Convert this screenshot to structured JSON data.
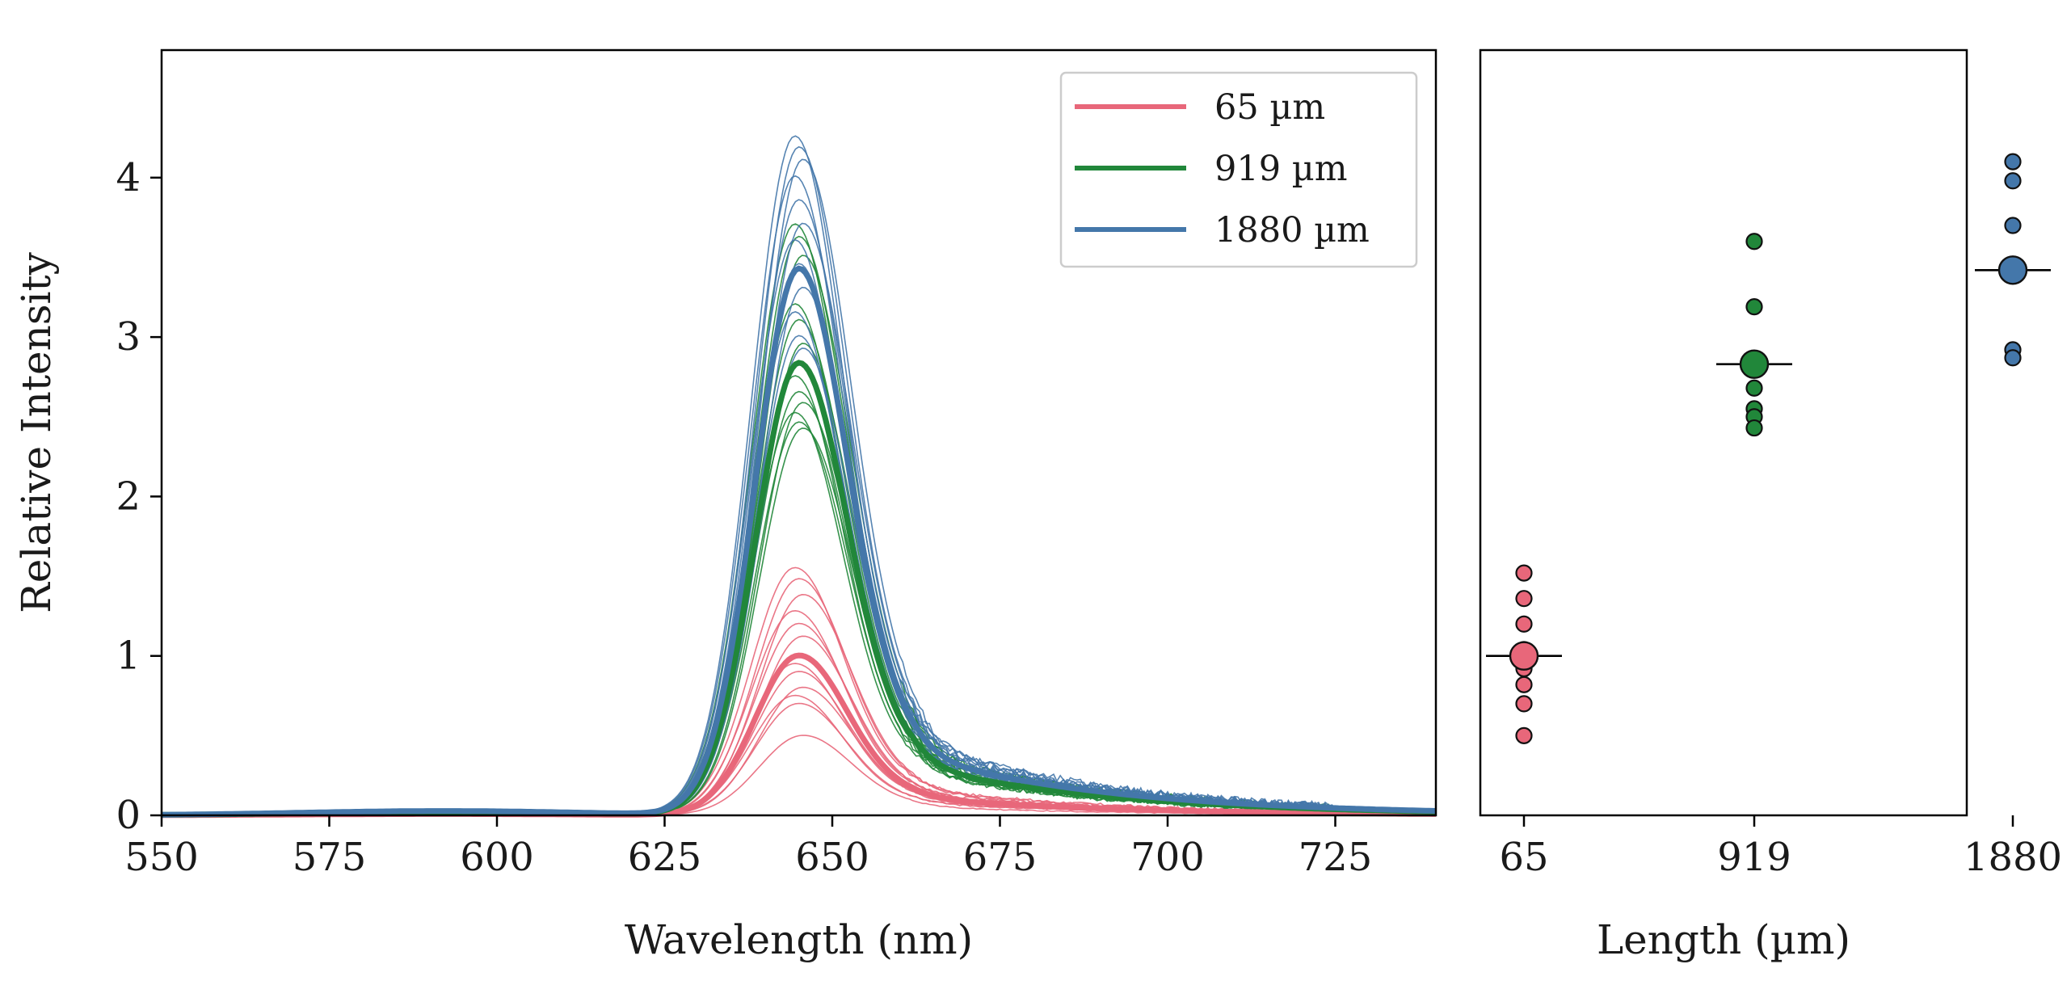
{
  "chart_data": [
    {
      "type": "line",
      "title": "",
      "xlabel": "Wavelength (nm)",
      "ylabel": "Relative Intensity",
      "xlim": [
        550,
        740
      ],
      "ylim": [
        0,
        4.8
      ],
      "xticks": [
        550,
        575,
        600,
        625,
        650,
        675,
        700,
        725
      ],
      "yticks": [
        0,
        1,
        2,
        3,
        4
      ],
      "grid": false,
      "legend": {
        "placement": "top-right",
        "entries": [
          {
            "label": "65 µm",
            "color": "#e8677a"
          },
          {
            "label": "919 µm",
            "color": "#21873a"
          },
          {
            "label": "1880 µm",
            "color": "#4477aa"
          }
        ]
      },
      "series": [
        {
          "name": "65 µm",
          "color": "#e8677a",
          "mean_peak": 1.0,
          "peak_wavelength": 645,
          "replicate_peaks": [
            1.55,
            1.48,
            1.38,
            1.28,
            1.2,
            1.12,
            0.95,
            0.9,
            0.8,
            0.75,
            0.7,
            0.5
          ]
        },
        {
          "name": "919 µm",
          "color": "#21873a",
          "mean_peak": 2.83,
          "peak_wavelength": 645,
          "replicate_peaks": [
            3.7,
            3.62,
            3.5,
            3.2,
            3.1,
            2.95,
            2.75,
            2.65,
            2.58,
            2.52,
            2.46,
            2.42
          ]
        },
        {
          "name": "1880 µm",
          "color": "#4477aa",
          "mean_peak": 3.42,
          "peak_wavelength": 645,
          "replicate_peaks": [
            4.25,
            4.18,
            4.1,
            4.0,
            3.85,
            3.7,
            3.6,
            3.45,
            3.3,
            3.15,
            3.0,
            2.92
          ]
        }
      ]
    },
    {
      "type": "scatter",
      "title": "",
      "xlabel": "Length (µm)",
      "ylabel": "",
      "categories": [
        "65",
        "919",
        "1880"
      ],
      "ylim": [
        0,
        4.8
      ],
      "grid": false,
      "series": [
        {
          "name": "65 µm",
          "color": "#e8677a",
          "points": [
            1.52,
            1.36,
            1.2,
            1.04,
            0.92,
            0.82,
            0.7,
            0.5
          ],
          "mean": 1.0
        },
        {
          "name": "919 µm",
          "color": "#21873a",
          "points": [
            3.6,
            3.19,
            2.68,
            2.55,
            2.5,
            2.43
          ],
          "mean": 2.83
        },
        {
          "name": "1880 µm",
          "color": "#4477aa",
          "points": [
            4.1,
            3.98,
            3.7,
            3.45,
            3.4,
            2.92,
            2.87
          ],
          "mean": 3.42
        }
      ]
    }
  ]
}
